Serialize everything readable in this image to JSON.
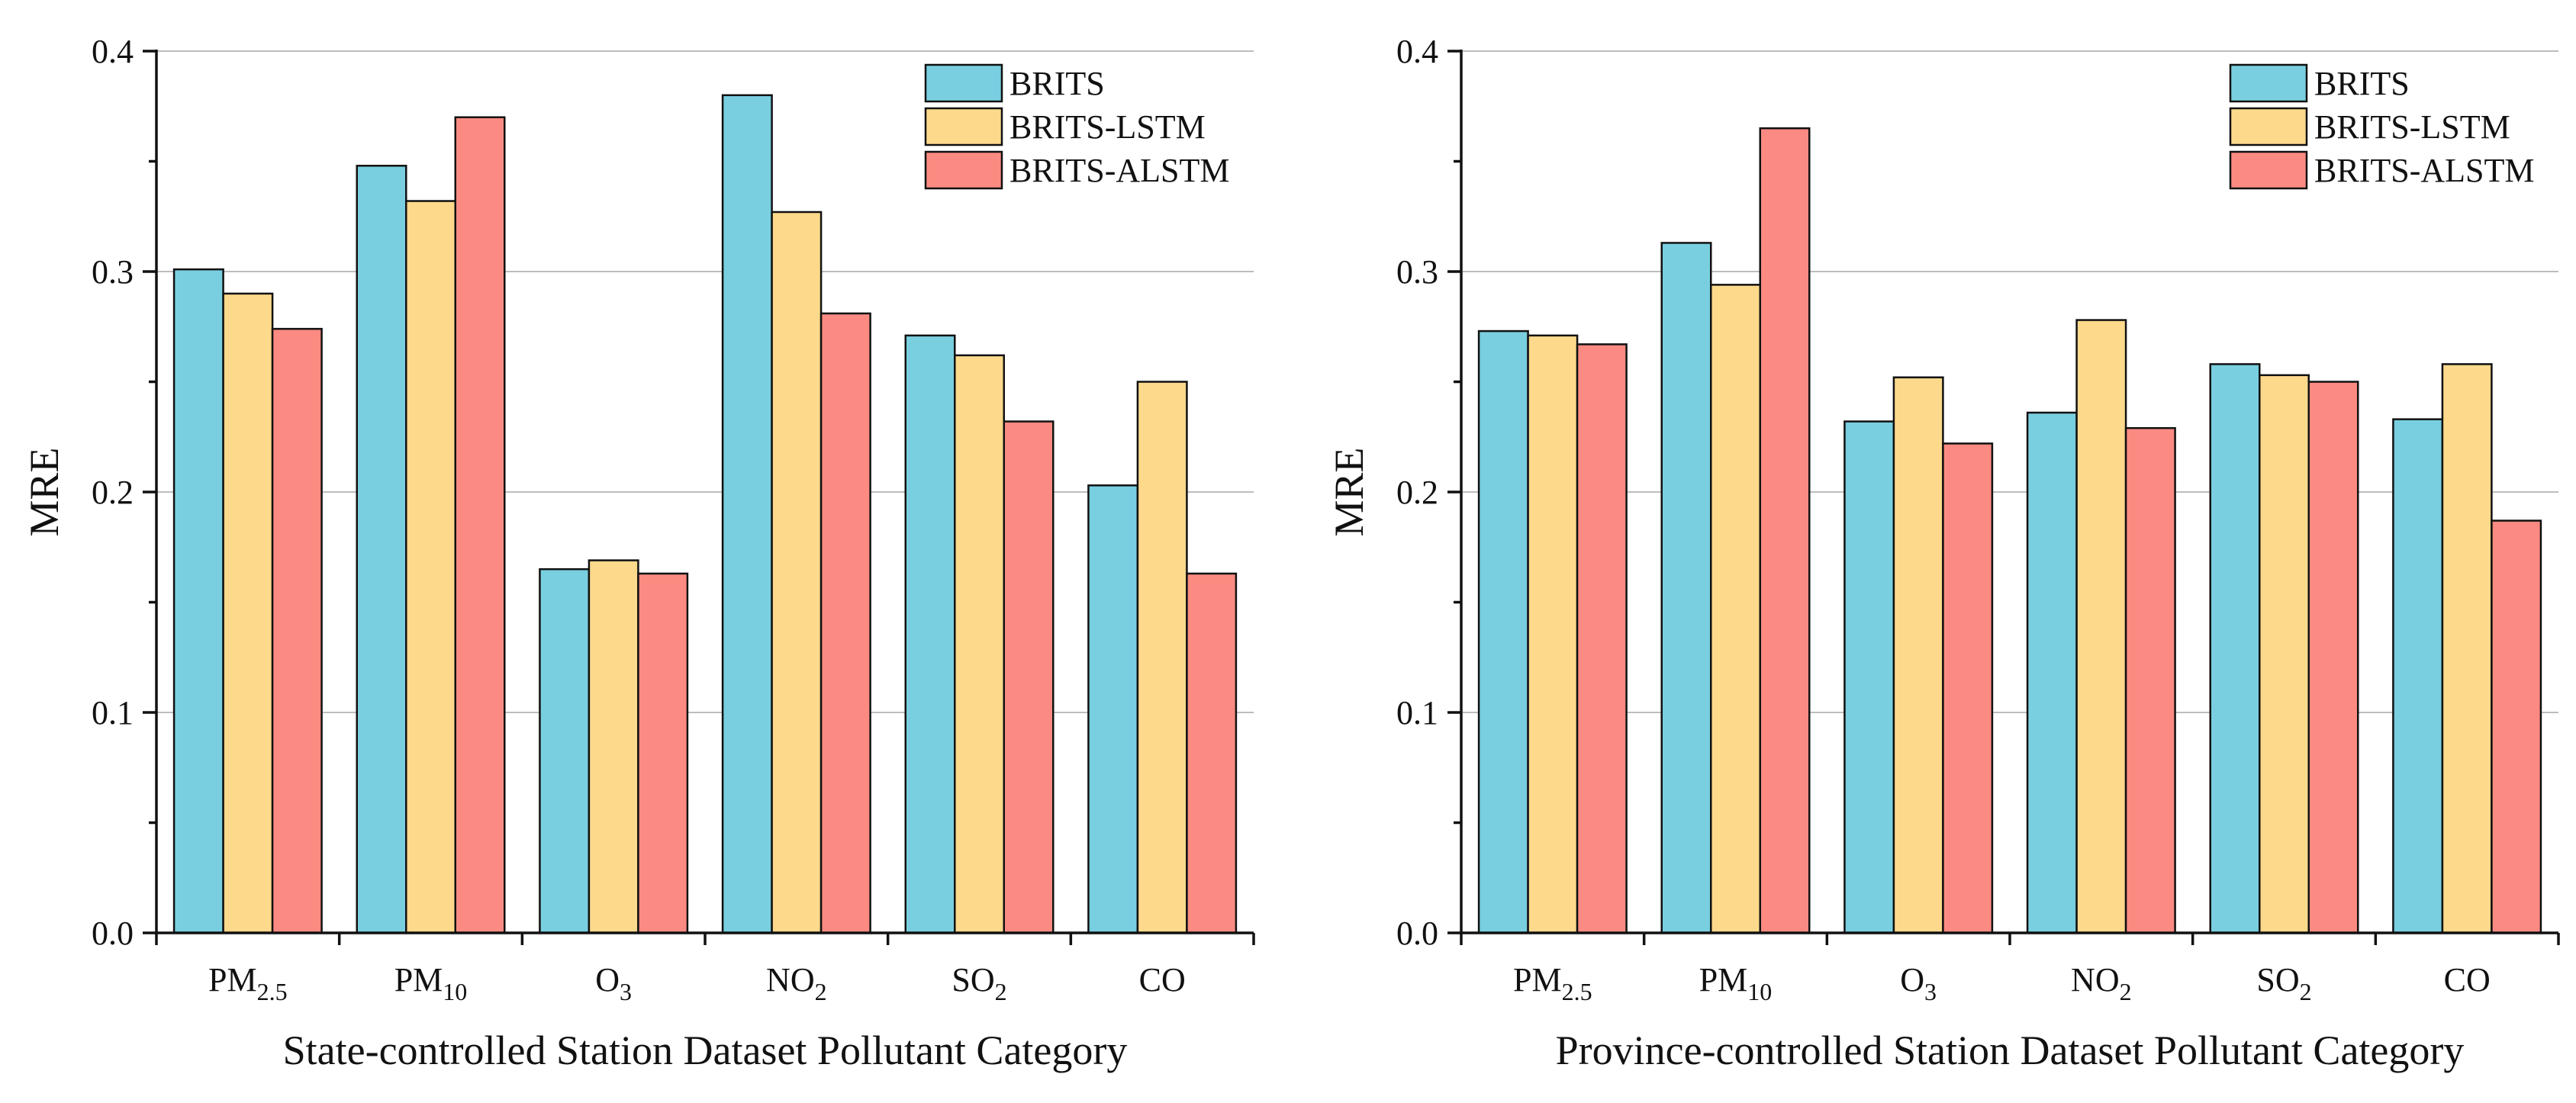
{
  "colors": {
    "BRITS": "#79CFE0",
    "BRITS-LSTM": "#FDD98C",
    "BRITS-ALSTM": "#FB8B82"
  },
  "chart_data": [
    {
      "type": "bar",
      "categories": [
        "PM2.5",
        "PM10",
        "O3",
        "NO2",
        "SO2",
        "CO"
      ],
      "category_labels": [
        {
          "base": "PM",
          "sub": "2.5"
        },
        {
          "base": "PM",
          "sub": "10"
        },
        {
          "base": "O",
          "sub": "3"
        },
        {
          "base": "NO",
          "sub": "2"
        },
        {
          "base": "SO",
          "sub": "2"
        },
        {
          "base": "CO",
          "sub": ""
        }
      ],
      "series": [
        {
          "name": "BRITS",
          "values": [
            0.301,
            0.348,
            0.165,
            0.38,
            0.271,
            0.203
          ]
        },
        {
          "name": "BRITS-LSTM",
          "values": [
            0.29,
            0.332,
            0.169,
            0.327,
            0.262,
            0.25
          ]
        },
        {
          "name": "BRITS-ALSTM",
          "values": [
            0.274,
            0.37,
            0.163,
            0.281,
            0.232,
            0.163
          ]
        }
      ],
      "xlabel": "State-controlled Station Dataset Pollutant Category",
      "ylabel": "MRE",
      "ylim": [
        0,
        0.4
      ],
      "yticks": [
        "0.0",
        "0.1",
        "0.2",
        "0.3",
        "0.4"
      ],
      "grid": true,
      "legend": "top-right"
    },
    {
      "type": "bar",
      "categories": [
        "PM2.5",
        "PM10",
        "O3",
        "NO2",
        "SO2",
        "CO"
      ],
      "category_labels": [
        {
          "base": "PM",
          "sub": "2.5"
        },
        {
          "base": "PM",
          "sub": "10"
        },
        {
          "base": "O",
          "sub": "3"
        },
        {
          "base": "NO",
          "sub": "2"
        },
        {
          "base": "SO",
          "sub": "2"
        },
        {
          "base": "CO",
          "sub": ""
        }
      ],
      "series": [
        {
          "name": "BRITS",
          "values": [
            0.273,
            0.313,
            0.232,
            0.236,
            0.258,
            0.233
          ]
        },
        {
          "name": "BRITS-LSTM",
          "values": [
            0.271,
            0.294,
            0.252,
            0.278,
            0.253,
            0.258
          ]
        },
        {
          "name": "BRITS-ALSTM",
          "values": [
            0.267,
            0.365,
            0.222,
            0.229,
            0.25,
            0.187
          ]
        }
      ],
      "xlabel": "Province-controlled Station Dataset Pollutant Category",
      "ylabel": "MRE",
      "ylim": [
        0,
        0.4
      ],
      "yticks": [
        "0.0",
        "0.1",
        "0.2",
        "0.3",
        "0.4"
      ],
      "grid": true,
      "legend": "top-right"
    }
  ]
}
